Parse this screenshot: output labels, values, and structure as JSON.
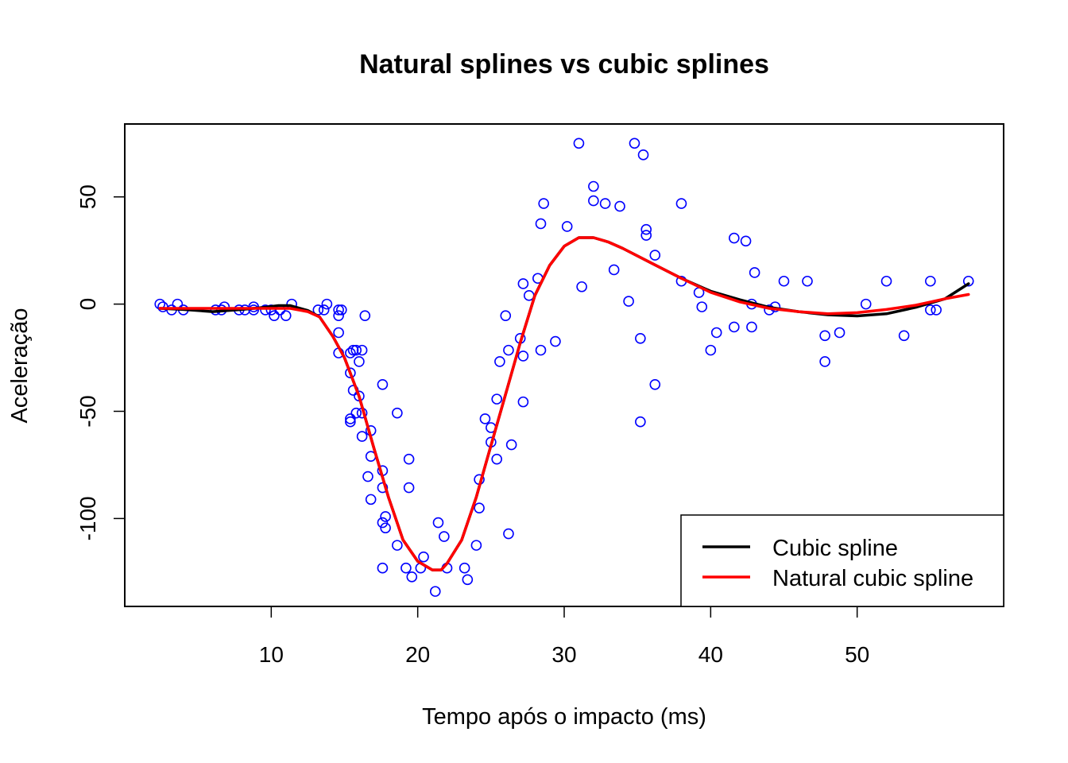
{
  "chart_data": {
    "type": "scatter",
    "title": "Natural splines vs cubic splines",
    "xlabel": "Tempo após o impacto (ms)",
    "ylabel": "Aceleração",
    "xlim": [
      0,
      60
    ],
    "ylim": [
      -141,
      84
    ],
    "x_ticks": [
      10,
      20,
      30,
      40,
      50
    ],
    "y_ticks": [
      50,
      0,
      -50,
      -100
    ],
    "x_tick_labels": [
      "10",
      "20",
      "30",
      "40",
      "50"
    ],
    "y_tick_labels": [
      "50",
      "0",
      "-50",
      "-100"
    ],
    "grid": false,
    "legend_position": "bottom-right",
    "legend": [
      {
        "label": "Cubic spline",
        "color": "#000000"
      },
      {
        "label": "Natural cubic spline",
        "color": "#FF0000"
      }
    ],
    "points_color": "#0000FF",
    "points": [
      [
        2.4,
        0.0
      ],
      [
        2.6,
        -1.3
      ],
      [
        3.2,
        -2.7
      ],
      [
        3.6,
        0.0
      ],
      [
        4.0,
        -2.7
      ],
      [
        6.2,
        -2.7
      ],
      [
        6.6,
        -2.7
      ],
      [
        6.8,
        -1.3
      ],
      [
        7.8,
        -2.7
      ],
      [
        8.2,
        -2.7
      ],
      [
        8.8,
        -1.3
      ],
      [
        8.8,
        -2.7
      ],
      [
        9.6,
        -2.7
      ],
      [
        10.0,
        -2.7
      ],
      [
        10.2,
        -5.4
      ],
      [
        10.6,
        -2.7
      ],
      [
        11.0,
        -5.4
      ],
      [
        11.4,
        0.0
      ],
      [
        13.2,
        -2.7
      ],
      [
        13.6,
        -2.7
      ],
      [
        13.8,
        0.0
      ],
      [
        14.6,
        -13.3
      ],
      [
        14.6,
        -2.7
      ],
      [
        14.6,
        -22.8
      ],
      [
        14.6,
        -5.4
      ],
      [
        14.8,
        -2.7
      ],
      [
        15.4,
        -22.8
      ],
      [
        15.4,
        -32.1
      ],
      [
        15.4,
        -53.5
      ],
      [
        15.4,
        -54.9
      ],
      [
        15.6,
        -40.2
      ],
      [
        15.6,
        -21.5
      ],
      [
        15.8,
        -21.5
      ],
      [
        15.8,
        -50.8
      ],
      [
        16.0,
        -42.9
      ],
      [
        16.0,
        -26.8
      ],
      [
        16.2,
        -21.5
      ],
      [
        16.2,
        -50.8
      ],
      [
        16.2,
        -61.7
      ],
      [
        16.4,
        -5.4
      ],
      [
        16.6,
        -80.4
      ],
      [
        16.8,
        -59.0
      ],
      [
        16.8,
        -71.0
      ],
      [
        16.8,
        -91.1
      ],
      [
        17.6,
        -77.7
      ],
      [
        17.6,
        -37.5
      ],
      [
        17.6,
        -85.6
      ],
      [
        17.6,
        -123.1
      ],
      [
        17.6,
        -101.9
      ],
      [
        17.8,
        -99.1
      ],
      [
        17.8,
        -104.4
      ],
      [
        18.6,
        -112.5
      ],
      [
        18.6,
        -50.8
      ],
      [
        19.2,
        -123.1
      ],
      [
        19.4,
        -85.6
      ],
      [
        19.4,
        -72.3
      ],
      [
        19.6,
        -127.2
      ],
      [
        20.2,
        -123.1
      ],
      [
        20.4,
        -117.9
      ],
      [
        21.2,
        -134.0
      ],
      [
        21.4,
        -101.9
      ],
      [
        21.8,
        -108.4
      ],
      [
        22.0,
        -123.1
      ],
      [
        23.2,
        -123.1
      ],
      [
        23.4,
        -128.5
      ],
      [
        24.0,
        -112.5
      ],
      [
        24.2,
        -95.1
      ],
      [
        24.2,
        -81.8
      ],
      [
        24.6,
        -53.5
      ],
      [
        25.0,
        -64.4
      ],
      [
        25.0,
        -57.6
      ],
      [
        25.4,
        -72.3
      ],
      [
        25.4,
        -44.3
      ],
      [
        25.6,
        -26.8
      ],
      [
        26.0,
        -5.4
      ],
      [
        26.2,
        -107.1
      ],
      [
        26.2,
        -21.5
      ],
      [
        26.4,
        -65.6
      ],
      [
        27.0,
        -16.0
      ],
      [
        27.2,
        -45.6
      ],
      [
        27.2,
        -24.2
      ],
      [
        27.2,
        9.5
      ],
      [
        27.6,
        4.0
      ],
      [
        28.2,
        12.0
      ],
      [
        28.4,
        -21.5
      ],
      [
        28.4,
        37.5
      ],
      [
        28.6,
        46.9
      ],
      [
        29.4,
        -17.4
      ],
      [
        30.2,
        36.2
      ],
      [
        31.0,
        75.0
      ],
      [
        31.2,
        8.1
      ],
      [
        32.0,
        54.9
      ],
      [
        32.0,
        48.2
      ],
      [
        32.8,
        46.9
      ],
      [
        33.4,
        16.0
      ],
      [
        33.8,
        45.6
      ],
      [
        34.4,
        1.3
      ],
      [
        34.8,
        75.0
      ],
      [
        35.2,
        -16.0
      ],
      [
        35.2,
        -54.9
      ],
      [
        35.4,
        69.6
      ],
      [
        35.6,
        32.1
      ],
      [
        35.6,
        34.8
      ],
      [
        36.2,
        22.8
      ],
      [
        36.2,
        -37.5
      ],
      [
        38.0,
        46.9
      ],
      [
        38.0,
        10.7
      ],
      [
        39.2,
        5.4
      ],
      [
        39.4,
        -1.3
      ],
      [
        40.0,
        -21.5
      ],
      [
        40.4,
        -13.3
      ],
      [
        41.6,
        30.8
      ],
      [
        41.6,
        -10.7
      ],
      [
        42.4,
        29.4
      ],
      [
        42.8,
        0.0
      ],
      [
        42.8,
        -10.7
      ],
      [
        43.0,
        14.7
      ],
      [
        44.0,
        -2.7
      ],
      [
        44.4,
        -1.3
      ],
      [
        45.0,
        10.7
      ],
      [
        46.6,
        10.7
      ],
      [
        47.8,
        -26.8
      ],
      [
        47.8,
        -14.7
      ],
      [
        48.8,
        -13.3
      ],
      [
        50.6,
        0.0
      ],
      [
        52.0,
        10.7
      ],
      [
        53.2,
        -14.7
      ],
      [
        55.0,
        -2.7
      ],
      [
        55.0,
        10.7
      ],
      [
        55.4,
        -2.7
      ],
      [
        57.6,
        10.7
      ]
    ],
    "series": [
      {
        "name": "Cubic spline",
        "color": "#000000",
        "x": [
          2.4,
          4.0,
          6.0,
          8.0,
          9.5,
          10.5,
          11.3,
          12.5,
          13.3,
          14.2,
          15.0,
          16.0,
          17.0,
          18.0,
          19.0,
          20.0,
          21.0,
          21.6,
          22.0,
          23.0,
          24.0,
          25.0,
          26.0,
          27.0,
          28.0,
          29.0,
          30.0,
          31.0,
          32.0,
          33.0,
          34.0,
          36.0,
          38.0,
          40.0,
          42.0,
          44.0,
          46.0,
          48.0,
          50.0,
          52.0,
          54.0,
          56.0,
          57.6
        ],
        "values": [
          -2.0,
          -2.5,
          -3.5,
          -2.5,
          -1.5,
          -0.7,
          -0.7,
          -3.0,
          -6.0,
          -15.0,
          -25.0,
          -43.0,
          -67.0,
          -90.0,
          -110.0,
          -120.0,
          -124.0,
          -124.0,
          -121.0,
          -110.0,
          -90.0,
          -66.0,
          -42.0,
          -18.0,
          4.0,
          18.0,
          27.0,
          31.0,
          31.0,
          29.0,
          26.0,
          19.0,
          12.0,
          6.0,
          2.0,
          -1.5,
          -3.5,
          -5.0,
          -5.5,
          -4.5,
          -1.5,
          2.5,
          9.5
        ]
      },
      {
        "name": "Natural cubic spline",
        "color": "#FF0000",
        "x": [
          2.4,
          4.0,
          6.0,
          8.0,
          9.5,
          10.5,
          11.3,
          12.5,
          13.3,
          14.2,
          15.0,
          16.0,
          17.0,
          18.0,
          19.0,
          20.0,
          21.0,
          21.6,
          22.0,
          23.0,
          24.0,
          25.0,
          26.0,
          27.0,
          28.0,
          29.0,
          30.0,
          31.0,
          32.0,
          33.0,
          34.0,
          36.0,
          38.0,
          40.0,
          42.0,
          44.0,
          46.0,
          48.0,
          50.0,
          52.0,
          54.0,
          56.0,
          57.6
        ],
        "values": [
          -2.0,
          -2.0,
          -2.0,
          -2.0,
          -2.0,
          -2.0,
          -2.0,
          -3.5,
          -6.0,
          -15.0,
          -25.0,
          -43.0,
          -67.0,
          -90.0,
          -110.0,
          -120.0,
          -124.0,
          -124.0,
          -121.0,
          -110.0,
          -90.0,
          -66.0,
          -42.0,
          -18.0,
          4.0,
          18.0,
          27.0,
          31.0,
          31.0,
          29.0,
          26.0,
          19.0,
          12.0,
          5.5,
          1.0,
          -2.0,
          -3.5,
          -4.5,
          -4.0,
          -2.5,
          -0.5,
          2.5,
          4.5
        ]
      }
    ]
  }
}
